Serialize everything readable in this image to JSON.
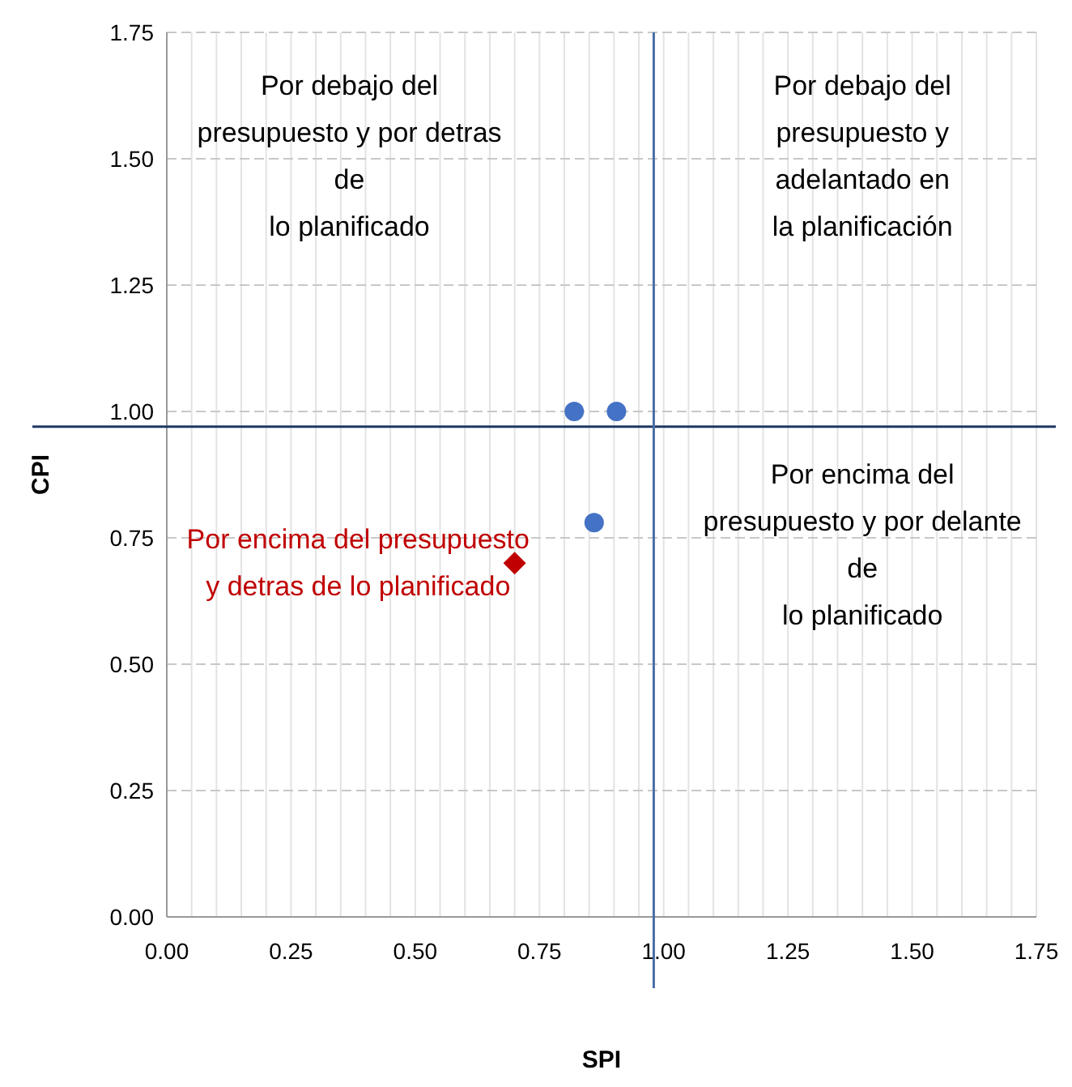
{
  "chart_data": {
    "type": "scatter",
    "xlabel": "SPI",
    "ylabel": "CPI",
    "xlim": [
      0,
      1.75
    ],
    "ylim": [
      0,
      1.75
    ],
    "xticks": [
      {
        "value": 0,
        "label": "0.00"
      },
      {
        "value": 0.05,
        "label": null
      },
      {
        "value": 0.1,
        "label": null
      },
      {
        "value": 0.15,
        "label": null
      },
      {
        "value": 0.2,
        "label": null
      },
      {
        "value": 0.25,
        "label": "0.25"
      },
      {
        "value": 0.3,
        "label": null
      },
      {
        "value": 0.35,
        "label": null
      },
      {
        "value": 0.4,
        "label": null
      },
      {
        "value": 0.45,
        "label": null
      },
      {
        "value": 0.5,
        "label": "0.50"
      },
      {
        "value": 0.55,
        "label": null
      },
      {
        "value": 0.6,
        "label": null
      },
      {
        "value": 0.65,
        "label": null
      },
      {
        "value": 0.7,
        "label": null
      },
      {
        "value": 0.75,
        "label": "0.75"
      },
      {
        "value": 0.8,
        "label": null
      },
      {
        "value": 0.85,
        "label": null
      },
      {
        "value": 0.9,
        "label": null
      },
      {
        "value": 0.95,
        "label": null
      },
      {
        "value": 1,
        "label": "1.00"
      },
      {
        "value": 1.05,
        "label": null
      },
      {
        "value": 1.1,
        "label": null
      },
      {
        "value": 1.15,
        "label": null
      },
      {
        "value": 1.2,
        "label": null
      },
      {
        "value": 1.25,
        "label": "1.25"
      },
      {
        "value": 1.3,
        "label": null
      },
      {
        "value": 1.35,
        "label": null
      },
      {
        "value": 1.4,
        "label": null
      },
      {
        "value": 1.45,
        "label": null
      },
      {
        "value": 1.5,
        "label": "1.50"
      },
      {
        "value": 1.55,
        "label": null
      },
      {
        "value": 1.6,
        "label": null
      },
      {
        "value": 1.65,
        "label": null
      },
      {
        "value": 1.7,
        "label": null
      },
      {
        "value": 1.75,
        "label": "1.75"
      }
    ],
    "yticks": [
      {
        "value": 0,
        "label": "0.00"
      },
      {
        "value": 0.25,
        "label": "0.25"
      },
      {
        "value": 0.5,
        "label": "0.50"
      },
      {
        "value": 0.75,
        "label": "0.75"
      },
      {
        "value": 1,
        "label": "1.00"
      },
      {
        "value": 1.25,
        "label": "1.25"
      },
      {
        "value": 1.5,
        "label": "1.50"
      },
      {
        "value": 1.75,
        "label": "1.75"
      }
    ],
    "grid": true,
    "series": [
      {
        "color": "#4472c4",
        "marker": "circle",
        "x": [
          0.82,
          0.905,
          0.86
        ],
        "values": [
          1.0,
          1.0,
          0.78
        ]
      },
      {
        "color": "#c00000",
        "marker": "diamond",
        "x": [
          0.7
        ],
        "values": [
          0.7
        ]
      }
    ],
    "ref_lines": [
      {
        "axis": "y",
        "value": 0.97,
        "color": "#1f3864"
      },
      {
        "axis": "x",
        "value": 0.98,
        "color": "#4a6fa5"
      }
    ],
    "annotations": [
      "Por  debajo del\npresupuesto y por detras\nde\nlo planificado",
      "Por  debajo del\npresupuesto y\nadelantado en\nla planificación",
      "Por encima del presupuesto\ny detras de lo planificado",
      "Por encima del\npresupuesto y por delante\nde\nlo planificado"
    ]
  }
}
